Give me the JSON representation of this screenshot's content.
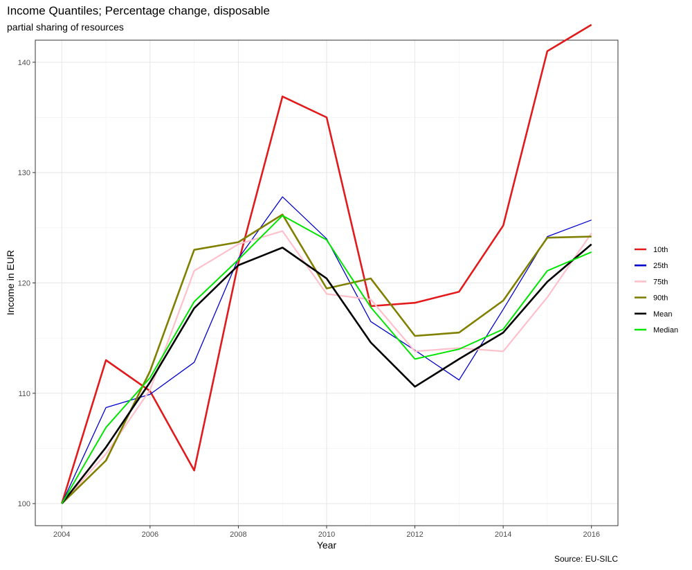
{
  "title": "Income Quantiles; Percentage change, disposable",
  "subtitle": "partial sharing of resources",
  "caption": "Source: EU-SILC",
  "chart_data": {
    "type": "line",
    "title": "Income Quantiles; Percentage change, disposable",
    "subtitle": "partial sharing of resources",
    "xlabel": "Year",
    "ylabel": "Income in EUR",
    "xlim": [
      2004,
      2016
    ],
    "ylim": [
      98,
      142
    ],
    "x_ticks": [
      2004,
      2006,
      2008,
      2010,
      2012,
      2014,
      2016
    ],
    "y_ticks": [
      100,
      110,
      120,
      130,
      140
    ],
    "grid": true,
    "legend_position": "right",
    "x": [
      2004,
      2005,
      2006,
      2007,
      2008,
      2009,
      2010,
      2011,
      2012,
      2013,
      2014,
      2015,
      2016
    ],
    "series": [
      {
        "name": "10th",
        "color": "#e31a1c",
        "width": 2.6,
        "values": [
          100.0,
          113.0,
          110.2,
          103.0,
          121.8,
          136.9,
          135.0,
          117.9,
          118.2,
          119.2,
          125.2,
          141.0,
          143.4
        ]
      },
      {
        "name": "25th",
        "color": "#0000cc",
        "width": 1.3,
        "values": [
          100.0,
          108.7,
          109.9,
          112.8,
          122.2,
          127.8,
          124.0,
          116.5,
          113.9,
          111.2,
          117.6,
          124.2,
          125.7
        ]
      },
      {
        "name": "75th",
        "color": "#ffc0cb",
        "width": 2.2,
        "values": [
          100.0,
          104.5,
          110.3,
          121.1,
          123.5,
          124.7,
          119.0,
          118.5,
          113.8,
          114.1,
          113.8,
          118.7,
          124.5
        ]
      },
      {
        "name": "90th",
        "color": "#808000",
        "width": 2.6,
        "values": [
          100.0,
          103.9,
          112.0,
          123.0,
          123.7,
          126.2,
          119.5,
          120.4,
          115.2,
          115.5,
          118.4,
          124.1,
          124.2
        ]
      },
      {
        "name": "Mean",
        "color": "#000000",
        "width": 2.6,
        "values": [
          100.0,
          105.1,
          111.0,
          117.7,
          121.6,
          123.2,
          120.4,
          114.6,
          110.6,
          113.1,
          115.5,
          120.1,
          123.5
        ]
      },
      {
        "name": "Median",
        "color": "#00e600",
        "width": 2.0,
        "values": [
          100.0,
          106.9,
          111.4,
          118.3,
          122.1,
          126.1,
          123.9,
          117.8,
          113.1,
          114.0,
          115.8,
          121.1,
          122.8
        ]
      }
    ]
  }
}
